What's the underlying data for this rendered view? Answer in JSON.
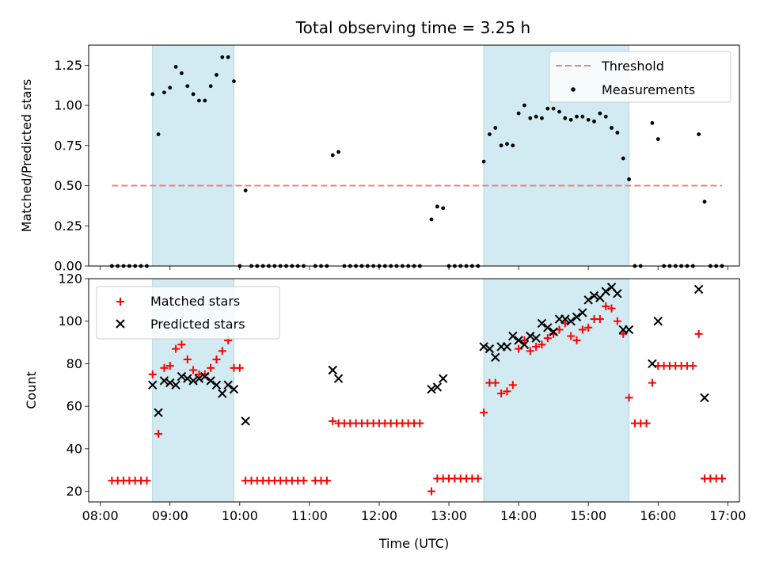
{
  "figure": {
    "title": "Total observing time = 3.25 h"
  },
  "colors": {
    "shade": "#add8e6",
    "threshold": "#f08080",
    "measurement": "#000000",
    "matched": "#ff0000",
    "predicted": "#000000"
  },
  "chart_data": [
    {
      "type": "scatter",
      "xlabel": "",
      "ylabel": "Matched/Predicted stars",
      "ylim": [
        0,
        1.375
      ],
      "yticks": [
        "0.00",
        "0.25",
        "0.50",
        "0.75",
        "1.00",
        "1.25"
      ],
      "xlim": [
        "08:00",
        "17:00"
      ],
      "legend_position": "top-right",
      "shaded_intervals": [
        [
          "08:45",
          "09:55"
        ],
        [
          "13:30",
          "15:35"
        ]
      ],
      "threshold": {
        "name": "Threshold",
        "y": 0.5,
        "x_start": "08:10",
        "x_end": "16:55"
      },
      "series": [
        {
          "name": "Measurements",
          "points": [
            [
              "08:10",
              0
            ],
            [
              "08:15",
              0
            ],
            [
              "08:20",
              0
            ],
            [
              "08:25",
              0
            ],
            [
              "08:30",
              0
            ],
            [
              "08:35",
              0
            ],
            [
              "08:40",
              0
            ],
            [
              "08:45",
              1.07
            ],
            [
              "08:50",
              0.82
            ],
            [
              "08:55",
              1.08
            ],
            [
              "09:00",
              1.11
            ],
            [
              "09:05",
              1.24
            ],
            [
              "09:10",
              1.2
            ],
            [
              "09:15",
              1.12
            ],
            [
              "09:20",
              1.07
            ],
            [
              "09:25",
              1.03
            ],
            [
              "09:30",
              1.03
            ],
            [
              "09:35",
              1.12
            ],
            [
              "09:40",
              1.19
            ],
            [
              "09:45",
              1.3
            ],
            [
              "09:50",
              1.3
            ],
            [
              "09:55",
              1.15
            ],
            [
              "10:00",
              0
            ],
            [
              "10:05",
              0.47
            ],
            [
              "10:10",
              0
            ],
            [
              "10:15",
              0
            ],
            [
              "10:20",
              0
            ],
            [
              "10:25",
              0
            ],
            [
              "10:30",
              0
            ],
            [
              "10:35",
              0
            ],
            [
              "10:40",
              0
            ],
            [
              "10:45",
              0
            ],
            [
              "10:50",
              0
            ],
            [
              "10:55",
              0
            ],
            [
              "11:05",
              0
            ],
            [
              "11:10",
              0
            ],
            [
              "11:15",
              0
            ],
            [
              "11:20",
              0.69
            ],
            [
              "11:25",
              0.71
            ],
            [
              "11:30",
              0
            ],
            [
              "11:35",
              0
            ],
            [
              "11:40",
              0
            ],
            [
              "11:45",
              0
            ],
            [
              "11:50",
              0
            ],
            [
              "11:55",
              0
            ],
            [
              "12:00",
              0
            ],
            [
              "12:05",
              0
            ],
            [
              "12:10",
              0
            ],
            [
              "12:15",
              0
            ],
            [
              "12:20",
              0
            ],
            [
              "12:25",
              0
            ],
            [
              "12:30",
              0
            ],
            [
              "12:35",
              0
            ],
            [
              "12:45",
              0.29
            ],
            [
              "12:50",
              0.37
            ],
            [
              "12:55",
              0.36
            ],
            [
              "13:00",
              0
            ],
            [
              "13:05",
              0
            ],
            [
              "13:10",
              0
            ],
            [
              "13:15",
              0
            ],
            [
              "13:20",
              0
            ],
            [
              "13:25",
              0
            ],
            [
              "13:30",
              0.65
            ],
            [
              "13:35",
              0.82
            ],
            [
              "13:40",
              0.86
            ],
            [
              "13:45",
              0.75
            ],
            [
              "13:50",
              0.76
            ],
            [
              "13:55",
              0.75
            ],
            [
              "14:00",
              0.95
            ],
            [
              "14:05",
              1.0
            ],
            [
              "14:10",
              0.92
            ],
            [
              "14:15",
              0.93
            ],
            [
              "14:20",
              0.92
            ],
            [
              "14:25",
              0.98
            ],
            [
              "14:30",
              0.98
            ],
            [
              "14:35",
              0.96
            ],
            [
              "14:40",
              0.92
            ],
            [
              "14:45",
              0.91
            ],
            [
              "14:50",
              0.93
            ],
            [
              "14:55",
              0.93
            ],
            [
              "15:00",
              0.91
            ],
            [
              "15:05",
              0.9
            ],
            [
              "15:10",
              0.95
            ],
            [
              "15:15",
              0.93
            ],
            [
              "15:20",
              0.86
            ],
            [
              "15:25",
              0.83
            ],
            [
              "15:30",
              0.67
            ],
            [
              "15:35",
              0.54
            ],
            [
              "15:40",
              0
            ],
            [
              "15:45",
              0
            ],
            [
              "15:55",
              0.89
            ],
            [
              "16:00",
              0.79
            ],
            [
              "16:05",
              0
            ],
            [
              "16:10",
              0
            ],
            [
              "16:15",
              0
            ],
            [
              "16:20",
              0
            ],
            [
              "16:25",
              0
            ],
            [
              "16:30",
              0
            ],
            [
              "16:35",
              0.82
            ],
            [
              "16:40",
              0.4
            ],
            [
              "16:45",
              0
            ],
            [
              "16:50",
              0
            ],
            [
              "16:55",
              0
            ]
          ]
        }
      ]
    },
    {
      "type": "scatter",
      "xlabel": "Time (UTC)",
      "ylabel": "Count",
      "ylim": [
        15,
        120
      ],
      "yticks": [
        "20",
        "40",
        "60",
        "80",
        "100",
        "120"
      ],
      "xlim": [
        "08:00",
        "17:00"
      ],
      "xticks": [
        "08:00",
        "09:00",
        "10:00",
        "11:00",
        "12:00",
        "13:00",
        "14:00",
        "15:00",
        "16:00",
        "17:00"
      ],
      "legend_position": "top-left",
      "shaded_intervals": [
        [
          "08:45",
          "09:55"
        ],
        [
          "13:30",
          "15:35"
        ]
      ],
      "series": [
        {
          "name": "Matched stars",
          "marker": "+",
          "points": [
            [
              "08:10",
              25
            ],
            [
              "08:15",
              25
            ],
            [
              "08:20",
              25
            ],
            [
              "08:25",
              25
            ],
            [
              "08:30",
              25
            ],
            [
              "08:35",
              25
            ],
            [
              "08:40",
              25
            ],
            [
              "08:45",
              75
            ],
            [
              "08:50",
              47
            ],
            [
              "08:55",
              78
            ],
            [
              "09:00",
              79
            ],
            [
              "09:05",
              87
            ],
            [
              "09:10",
              89
            ],
            [
              "09:15",
              82
            ],
            [
              "09:20",
              77
            ],
            [
              "09:25",
              75
            ],
            [
              "09:30",
              75
            ],
            [
              "09:35",
              78
            ],
            [
              "09:40",
              82
            ],
            [
              "09:45",
              86
            ],
            [
              "09:50",
              91
            ],
            [
              "09:55",
              78
            ],
            [
              "10:00",
              78
            ],
            [
              "10:05",
              25
            ],
            [
              "10:10",
              25
            ],
            [
              "10:15",
              25
            ],
            [
              "10:20",
              25
            ],
            [
              "10:25",
              25
            ],
            [
              "10:30",
              25
            ],
            [
              "10:35",
              25
            ],
            [
              "10:40",
              25
            ],
            [
              "10:45",
              25
            ],
            [
              "10:50",
              25
            ],
            [
              "10:55",
              25
            ],
            [
              "11:05",
              25
            ],
            [
              "11:10",
              25
            ],
            [
              "11:15",
              25
            ],
            [
              "11:20",
              53
            ],
            [
              "11:25",
              52
            ],
            [
              "11:30",
              52
            ],
            [
              "11:35",
              52
            ],
            [
              "11:40",
              52
            ],
            [
              "11:45",
              52
            ],
            [
              "11:50",
              52
            ],
            [
              "11:55",
              52
            ],
            [
              "12:00",
              52
            ],
            [
              "12:05",
              52
            ],
            [
              "12:10",
              52
            ],
            [
              "12:15",
              52
            ],
            [
              "12:20",
              52
            ],
            [
              "12:25",
              52
            ],
            [
              "12:30",
              52
            ],
            [
              "12:35",
              52
            ],
            [
              "12:45",
              20
            ],
            [
              "12:50",
              26
            ],
            [
              "12:55",
              26
            ],
            [
              "13:00",
              26
            ],
            [
              "13:05",
              26
            ],
            [
              "13:10",
              26
            ],
            [
              "13:15",
              26
            ],
            [
              "13:20",
              26
            ],
            [
              "13:25",
              26
            ],
            [
              "13:30",
              57
            ],
            [
              "13:35",
              71
            ],
            [
              "13:40",
              71
            ],
            [
              "13:45",
              66
            ],
            [
              "13:50",
              67
            ],
            [
              "13:55",
              70
            ],
            [
              "14:00",
              87
            ],
            [
              "14:05",
              91
            ],
            [
              "14:10",
              86
            ],
            [
              "14:15",
              88
            ],
            [
              "14:20",
              89
            ],
            [
              "14:25",
              92
            ],
            [
              "14:30",
              94
            ],
            [
              "14:35",
              96
            ],
            [
              "14:40",
              99
            ],
            [
              "14:45",
              93
            ],
            [
              "14:50",
              91
            ],
            [
              "14:55",
              96
            ],
            [
              "15:00",
              97
            ],
            [
              "15:05",
              101
            ],
            [
              "15:10",
              101
            ],
            [
              "15:15",
              107
            ],
            [
              "15:20",
              106
            ],
            [
              "15:25",
              100
            ],
            [
              "15:30",
              94
            ],
            [
              "15:35",
              64
            ],
            [
              "15:40",
              52
            ],
            [
              "15:45",
              52
            ],
            [
              "15:50",
              52
            ],
            [
              "15:55",
              71
            ],
            [
              "16:00",
              79
            ],
            [
              "16:05",
              79
            ],
            [
              "16:10",
              79
            ],
            [
              "16:15",
              79
            ],
            [
              "16:20",
              79
            ],
            [
              "16:25",
              79
            ],
            [
              "16:30",
              79
            ],
            [
              "16:35",
              94
            ],
            [
              "16:40",
              26
            ],
            [
              "16:45",
              26
            ],
            [
              "16:50",
              26
            ],
            [
              "16:55",
              26
            ]
          ]
        },
        {
          "name": "Predicted stars",
          "marker": "x",
          "points": [
            [
              "08:45",
              70
            ],
            [
              "08:50",
              57
            ],
            [
              "08:55",
              72
            ],
            [
              "09:00",
              71
            ],
            [
              "09:05",
              70
            ],
            [
              "09:10",
              74
            ],
            [
              "09:15",
              73
            ],
            [
              "09:20",
              72
            ],
            [
              "09:25",
              73
            ],
            [
              "09:30",
              74
            ],
            [
              "09:35",
              72
            ],
            [
              "09:40",
              70
            ],
            [
              "09:45",
              66
            ],
            [
              "09:50",
              70
            ],
            [
              "09:55",
              68
            ],
            [
              "10:05",
              53
            ],
            [
              "11:20",
              77
            ],
            [
              "11:25",
              73
            ],
            [
              "12:45",
              68
            ],
            [
              "12:50",
              69
            ],
            [
              "12:55",
              73
            ],
            [
              "13:30",
              88
            ],
            [
              "13:35",
              87
            ],
            [
              "13:40",
              83
            ],
            [
              "13:45",
              88
            ],
            [
              "13:50",
              88
            ],
            [
              "13:55",
              93
            ],
            [
              "14:00",
              91
            ],
            [
              "14:05",
              89
            ],
            [
              "14:10",
              93
            ],
            [
              "14:15",
              92
            ],
            [
              "14:20",
              99
            ],
            [
              "14:25",
              97
            ],
            [
              "14:30",
              95
            ],
            [
              "14:35",
              101
            ],
            [
              "14:40",
              101
            ],
            [
              "14:45",
              100
            ],
            [
              "14:50",
              102
            ],
            [
              "14:55",
              104
            ],
            [
              "15:00",
              110
            ],
            [
              "15:05",
              112
            ],
            [
              "15:10",
              111
            ],
            [
              "15:15",
              114
            ],
            [
              "15:20",
              116
            ],
            [
              "15:25",
              113
            ],
            [
              "15:30",
              96
            ],
            [
              "15:35",
              96
            ],
            [
              "15:55",
              80
            ],
            [
              "16:00",
              100
            ],
            [
              "16:35",
              115
            ],
            [
              "16:40",
              64
            ]
          ]
        }
      ]
    }
  ]
}
